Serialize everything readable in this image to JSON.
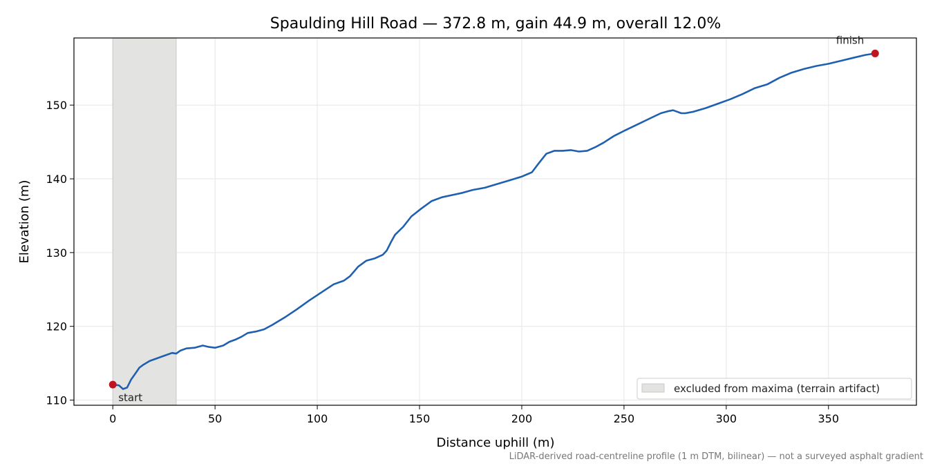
{
  "chart_data": {
    "type": "line",
    "title": "Spaulding Hill Road — 372.8 m, gain 44.9 m, overall 12.0%",
    "xlabel": "Distance uphill (m)",
    "ylabel": "Elevation (m)",
    "xlim": [
      -19,
      393
    ],
    "ylim": [
      109.3,
      159.1
    ],
    "xticks": [
      0,
      50,
      100,
      150,
      200,
      250,
      300,
      350
    ],
    "yticks": [
      110,
      120,
      130,
      140,
      150
    ],
    "grid": true,
    "series": [
      {
        "color": "#1f5fb0",
        "x": [
          0,
          3,
          5,
          7,
          9,
          11,
          13,
          15,
          18,
          22,
          26,
          29,
          31,
          33,
          36,
          40,
          44,
          47,
          50,
          54,
          57,
          60,
          63,
          66,
          70,
          74,
          78,
          84,
          90,
          96,
          102,
          108,
          113,
          116,
          120,
          124,
          128,
          132,
          134,
          136,
          138,
          142,
          146,
          151,
          156,
          161,
          166,
          171,
          176,
          182,
          188,
          194,
          200,
          205,
          208,
          212,
          216,
          220,
          224,
          228,
          232,
          236,
          240,
          245,
          250,
          256,
          262,
          268,
          272,
          274,
          276,
          278,
          280,
          284,
          290,
          296,
          302,
          308,
          314,
          320,
          326,
          332,
          338,
          344,
          350,
          356,
          362,
          368,
          372.8
        ],
        "y": [
          112.1,
          112.0,
          111.5,
          111.7,
          112.8,
          113.6,
          114.4,
          114.8,
          115.3,
          115.7,
          116.1,
          116.4,
          116.3,
          116.7,
          117.0,
          117.1,
          117.4,
          117.2,
          117.1,
          117.4,
          117.9,
          118.2,
          118.6,
          119.1,
          119.3,
          119.6,
          120.2,
          121.2,
          122.3,
          123.5,
          124.6,
          125.7,
          126.2,
          126.8,
          128.1,
          128.9,
          129.2,
          129.7,
          130.3,
          131.4,
          132.4,
          133.5,
          134.9,
          136.0,
          137.0,
          137.5,
          137.8,
          138.1,
          138.5,
          138.8,
          139.3,
          139.8,
          140.3,
          140.9,
          142.0,
          143.4,
          143.8,
          143.8,
          143.9,
          143.7,
          143.8,
          144.3,
          144.9,
          145.8,
          146.5,
          147.3,
          148.1,
          148.9,
          149.2,
          149.3,
          149.1,
          148.9,
          148.9,
          149.1,
          149.6,
          150.2,
          150.8,
          151.5,
          152.3,
          152.8,
          153.7,
          154.4,
          154.9,
          155.3,
          155.6,
          156.0,
          156.4,
          156.8,
          157.0
        ]
      }
    ],
    "markers": [
      {
        "label": "start",
        "x": 0,
        "y": 112.1,
        "color": "#c0151f"
      },
      {
        "label": "finish",
        "x": 372.8,
        "y": 157.0,
        "color": "#c0151f"
      }
    ],
    "shaded_region": {
      "x_start": 0,
      "x_end": 31,
      "color": "#e3e3e1",
      "label": "excluded from maxima (terrain artifact)"
    },
    "legend": {
      "location": "lower-right",
      "entries": [
        "excluded from maxima (terrain artifact)"
      ]
    },
    "footnote": "LiDAR-derived road-centreline profile (1 m DTM, bilinear) — not a surveyed asphalt gradient"
  }
}
